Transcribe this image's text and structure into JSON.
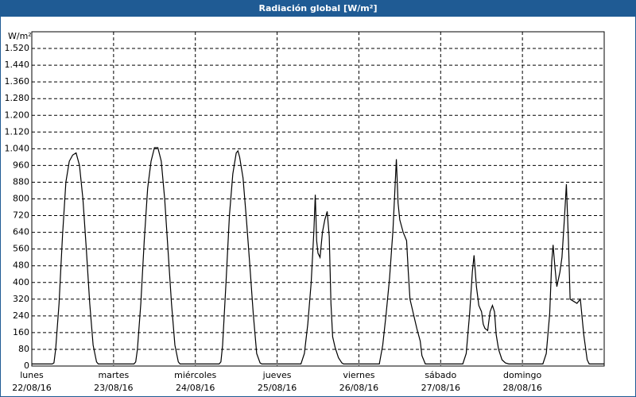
{
  "chart_data": {
    "type": "line",
    "title": "Radiación global [W/m²]",
    "ylabel": "W/m²",
    "xlim": [
      0,
      168
    ],
    "xticks": [
      0,
      24,
      48,
      72,
      96,
      120,
      144
    ],
    "xtick_labels": [
      {
        "day": "lunes",
        "date": "22/08/16"
      },
      {
        "day": "martes",
        "date": "23/08/16"
      },
      {
        "day": "miércoles",
        "date": "24/08/16"
      },
      {
        "day": "jueves",
        "date": "25/08/16"
      },
      {
        "day": "viernes",
        "date": "26/08/16"
      },
      {
        "day": "sábado",
        "date": "27/08/16"
      },
      {
        "day": "domingo",
        "date": "28/08/16"
      }
    ],
    "ylim": [
      0,
      1600
    ],
    "yticks": [
      0,
      80,
      160,
      240,
      320,
      400,
      480,
      560,
      640,
      720,
      800,
      880,
      960,
      {
        "value": 1040,
        "label": "1.040"
      },
      {
        "value": 1120,
        "label": "1.120"
      },
      {
        "value": 1200,
        "label": "1.200"
      },
      {
        "value": 1280,
        "label": "1.280"
      },
      {
        "value": 1360,
        "label": "1.360"
      },
      {
        "value": 1440,
        "label": "1.440"
      },
      {
        "value": 1520,
        "label": "1.520"
      }
    ],
    "grid": true,
    "series": [
      {
        "color": "#000000",
        "x": [
          0,
          6,
          6.5,
          7,
          8,
          9,
          10,
          11,
          12,
          13,
          14,
          15,
          16,
          17,
          18,
          19,
          19.5,
          24,
          30,
          30.5,
          31,
          32,
          33,
          34,
          35,
          36,
          37,
          38,
          39,
          40,
          41,
          42,
          43,
          43.5,
          48,
          55,
          55.5,
          56,
          57,
          58,
          59,
          60,
          60.5,
          61,
          62,
          63,
          64,
          65,
          66,
          67,
          67.5,
          72,
          79,
          80,
          81,
          82,
          82.8,
          83.2,
          83.6,
          84,
          84.6,
          85.3,
          86,
          86.7,
          87.3,
          87.8,
          88.3,
          89,
          90,
          91,
          91.5,
          96,
          102,
          103,
          104,
          105,
          106,
          107,
          107.5,
          108,
          109,
          110,
          110.5,
          111,
          112,
          113,
          114,
          114.5,
          115.5,
          120,
          126.5,
          127.5,
          128.5,
          129.3,
          129.8,
          130.5,
          131.2,
          132,
          132.5,
          133,
          133.8,
          134.5,
          135.2,
          135.8,
          136.3,
          137,
          138,
          139,
          140,
          144,
          150,
          151,
          152,
          152.6,
          153,
          153.5,
          154.1,
          155,
          155.6,
          156.3,
          156.9,
          157.5,
          158,
          159,
          160,
          161,
          162,
          163,
          163.6,
          168
        ],
        "values": [
          10,
          10,
          15,
          80,
          300,
          620,
          880,
          980,
          1010,
          1020,
          960,
          800,
          560,
          300,
          100,
          20,
          10,
          10,
          10,
          20,
          80,
          300,
          600,
          850,
          980,
          1045,
          1045,
          980,
          800,
          550,
          300,
          100,
          20,
          10,
          10,
          10,
          20,
          100,
          400,
          720,
          920,
          1020,
          1030,
          1000,
          900,
          700,
          480,
          250,
          60,
          15,
          10,
          10,
          10,
          60,
          200,
          400,
          650,
          820,
          600,
          540,
          520,
          640,
          700,
          740,
          620,
          300,
          140,
          90,
          40,
          15,
          10,
          10,
          10,
          100,
          250,
          420,
          650,
          990,
          780,
          700,
          640,
          600,
          450,
          320,
          250,
          180,
          120,
          50,
          10,
          10,
          10,
          60,
          250,
          450,
          530,
          380,
          290,
          260,
          200,
          180,
          170,
          260,
          290,
          260,
          150,
          80,
          30,
          15,
          10,
          10,
          10,
          60,
          250,
          500,
          580,
          480,
          380,
          450,
          520,
          700,
          870,
          600,
          320,
          310,
          300,
          320,
          150,
          30,
          10,
          10
        ]
      }
    ]
  }
}
